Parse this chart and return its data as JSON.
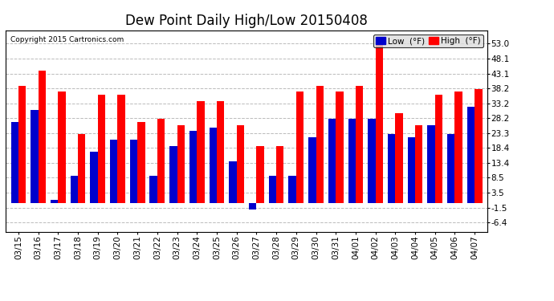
{
  "title": "Dew Point Daily High/Low 20150408",
  "copyright": "Copyright 2015 Cartronics.com",
  "dates": [
    "03/15",
    "03/16",
    "03/17",
    "03/18",
    "03/19",
    "03/20",
    "03/21",
    "03/22",
    "03/23",
    "03/24",
    "03/25",
    "03/26",
    "03/27",
    "03/28",
    "03/29",
    "03/30",
    "03/31",
    "04/01",
    "04/02",
    "04/03",
    "04/04",
    "04/05",
    "04/06",
    "04/07"
  ],
  "low": [
    27,
    31,
    1,
    9,
    17,
    21,
    21,
    9,
    19,
    24,
    25,
    14,
    -2,
    9,
    9,
    22,
    28,
    28,
    28,
    23,
    22,
    26,
    23,
    32
  ],
  "high": [
    39,
    44,
    37,
    23,
    36,
    36,
    27,
    28,
    26,
    34,
    34,
    26,
    19,
    19,
    37,
    39,
    37,
    39,
    54,
    30,
    26,
    36,
    37,
    38
  ],
  "low_color": "#0000cc",
  "high_color": "#ff0000",
  "bg_color": "#ffffff",
  "grid_color": "#bbbbbb",
  "yticks": [
    -6.4,
    -1.5,
    3.5,
    8.5,
    13.4,
    18.4,
    23.3,
    28.2,
    33.2,
    38.2,
    43.1,
    48.1,
    53.0
  ],
  "ymin": -9.5,
  "ymax": 57.5,
  "bar_width": 0.38,
  "title_fontsize": 12,
  "tick_fontsize": 7.5,
  "legend_fontsize": 7.5
}
